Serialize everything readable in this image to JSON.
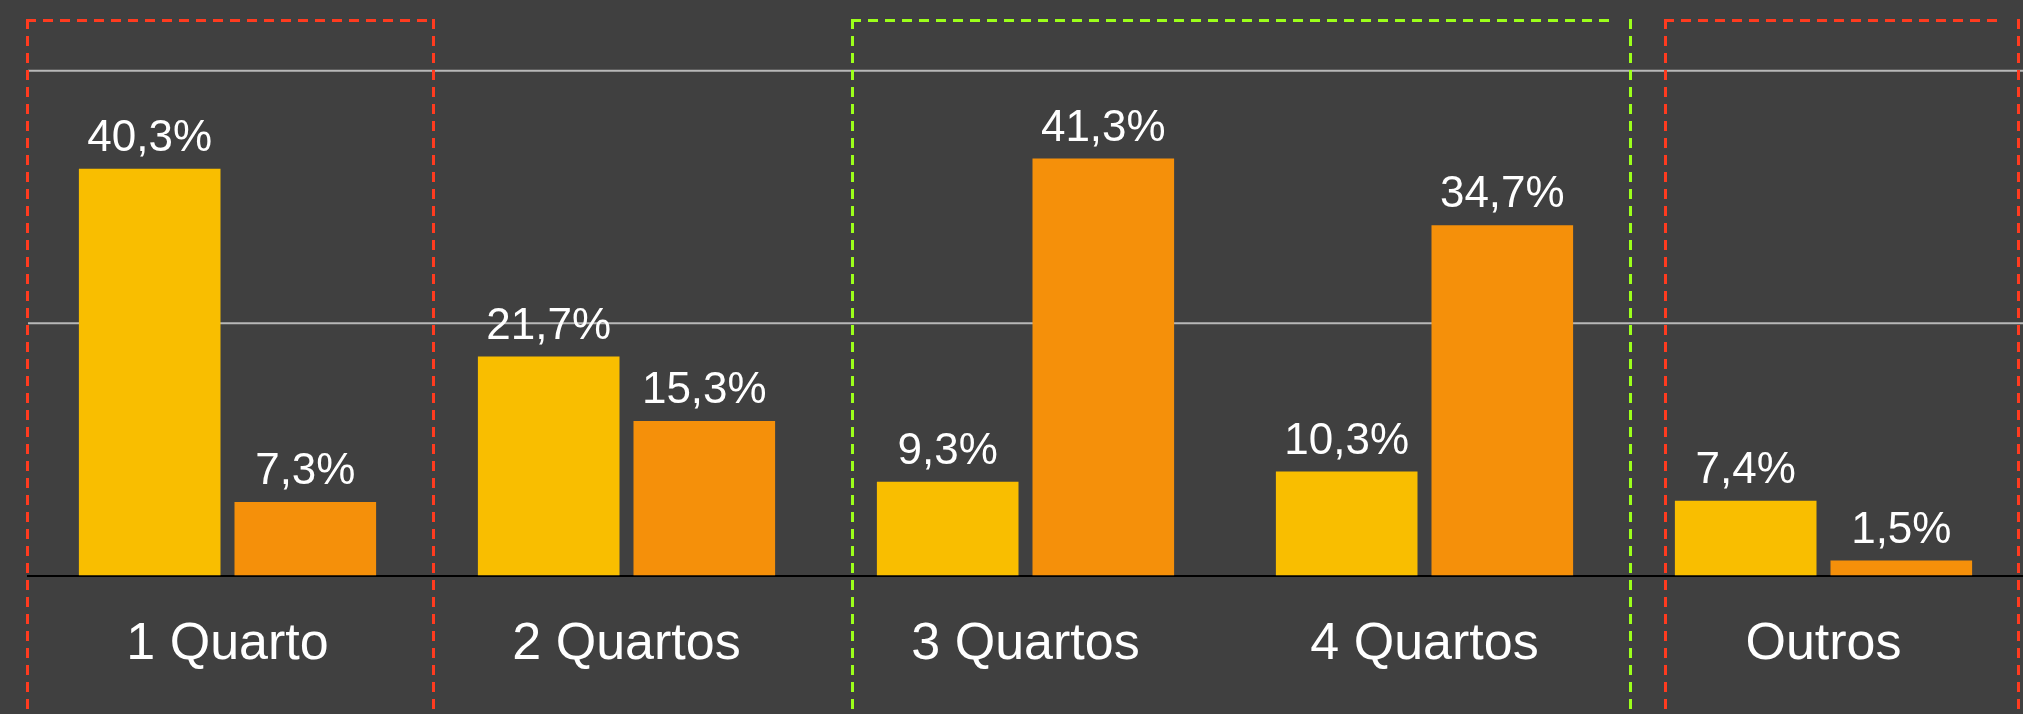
{
  "chart_data": {
    "type": "bar",
    "categories": [
      "1 Quarto",
      "2 Quartos",
      "3 Quartos",
      "4 Quartos",
      "Outros"
    ],
    "series": [
      {
        "color": "#f9be00",
        "values": [
          40.3,
          21.7,
          9.3,
          10.3,
          7.4
        ],
        "value_labels": [
          "40,3%",
          "21,7%",
          "9,3%",
          "10,3%",
          "7,4%"
        ]
      },
      {
        "color": "#f5900a",
        "values": [
          7.3,
          15.3,
          41.3,
          34.7,
          1.5
        ],
        "value_labels": [
          "7,3%",
          "15,3%",
          "41,3%",
          "34,7%",
          "1,5%"
        ]
      }
    ],
    "ylim": [
      0,
      57
    ],
    "ref_lines": [
      {
        "axis": "y",
        "value": 25,
        "color": "#b8b8b8"
      },
      {
        "axis": "y",
        "value": 50,
        "color": "#b8b8b8"
      }
    ],
    "tick_labels": "x",
    "legend": false
  }
}
